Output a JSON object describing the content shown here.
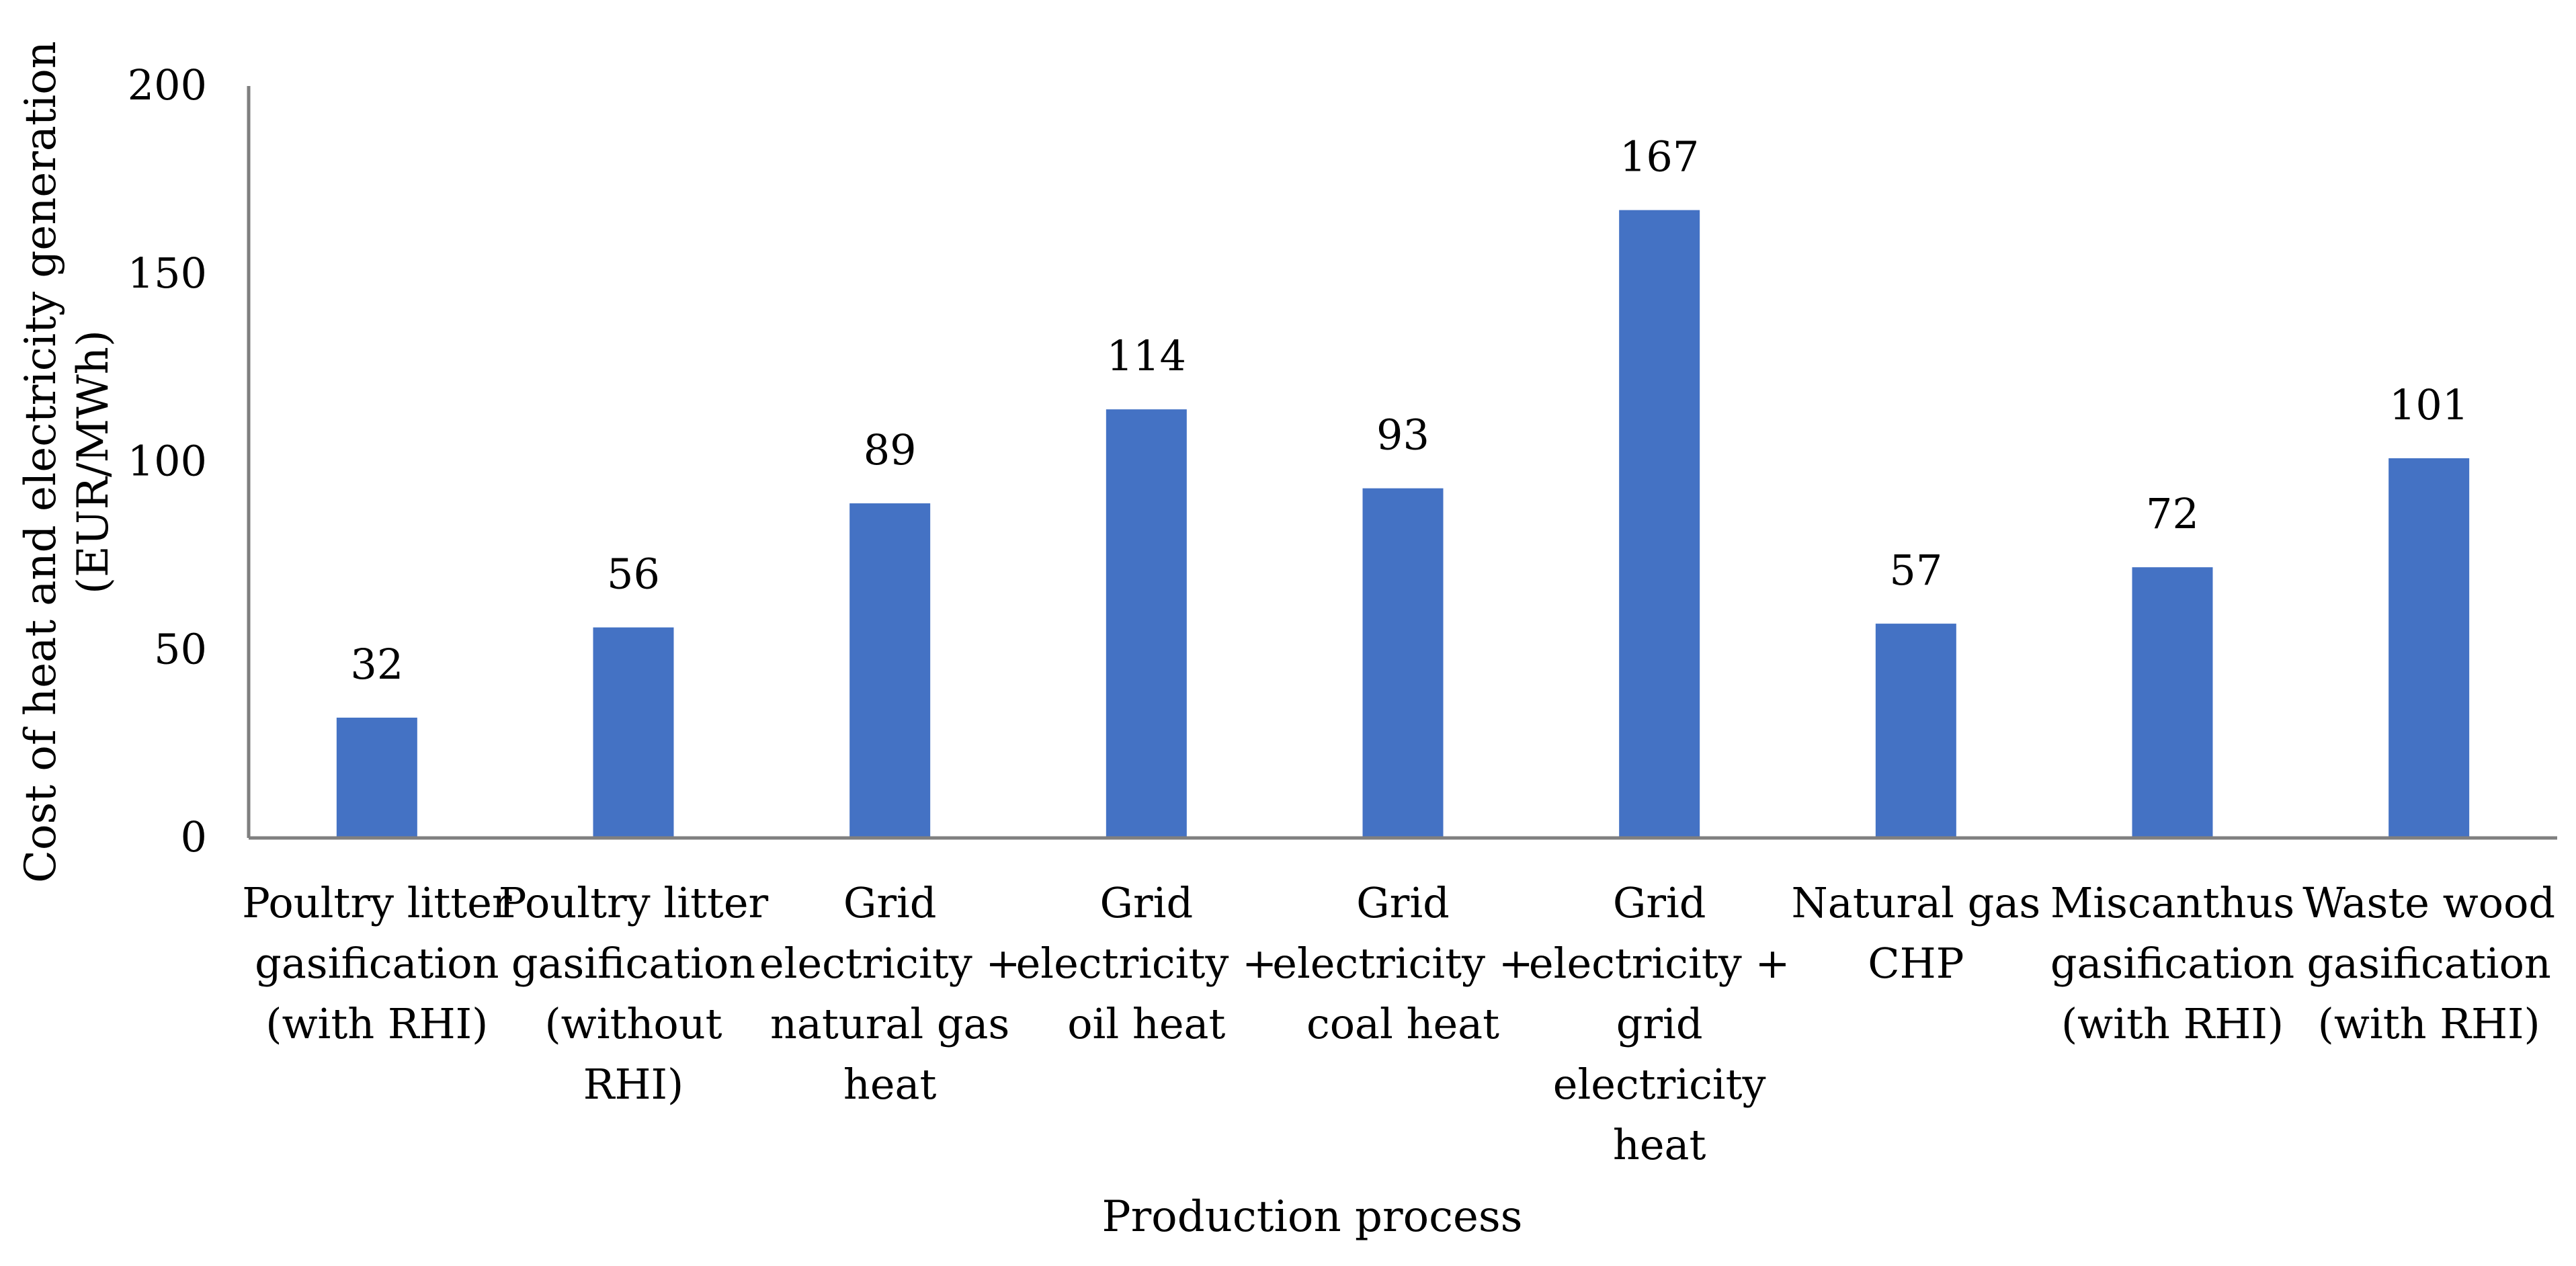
{
  "chart_data": {
    "type": "bar",
    "title": "",
    "xlabel": "Production process",
    "ylabel": [
      "Cost of heat and electricity generation",
      "(EUR/MWh)"
    ],
    "ylim": [
      0,
      200
    ],
    "yticks": [
      0,
      50,
      100,
      150,
      200
    ],
    "grid": false,
    "legend": "none",
    "bar_color": "#4472C4",
    "axis_color": "#7f7f7f",
    "categories": [
      [
        "Poultry litter",
        "gasification",
        "(with RHI)"
      ],
      [
        "Poultry litter",
        "gasification",
        "(without",
        "RHI)"
      ],
      [
        "Grid",
        "electricity +",
        "natural gas",
        "heat"
      ],
      [
        "Grid",
        "electricity +",
        "oil heat"
      ],
      [
        "Grid",
        "electricity +",
        "coal heat"
      ],
      [
        "Grid",
        "electricity +",
        "grid",
        "electricity",
        "heat"
      ],
      [
        "Natural gas",
        "CHP"
      ],
      [
        "Miscanthus",
        "gasification",
        "(with RHI)"
      ],
      [
        "Waste wood",
        "gasification",
        "(with RHI)"
      ]
    ],
    "values": [
      32,
      56,
      89,
      114,
      93,
      167,
      57,
      72,
      101
    ],
    "data_labels": [
      "32",
      "56",
      "89",
      "114",
      "93",
      "167",
      "57",
      "72",
      "101"
    ]
  }
}
